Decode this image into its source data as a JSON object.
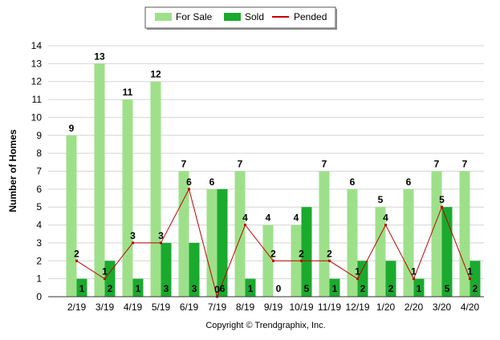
{
  "chart_data": {
    "type": "bar",
    "categories": [
      "2/19",
      "3/19",
      "4/19",
      "5/19",
      "6/19",
      "7/19",
      "8/19",
      "9/19",
      "10/19",
      "11/19",
      "12/19",
      "1/20",
      "2/20",
      "3/20",
      "4/20"
    ],
    "series": [
      {
        "name": "For Sale",
        "type": "bar",
        "values": [
          9,
          13,
          11,
          12,
          7,
          6,
          7,
          4,
          4,
          7,
          6,
          5,
          6,
          7,
          7
        ],
        "color": "#9ee08a"
      },
      {
        "name": "Sold",
        "type": "bar",
        "values": [
          1,
          2,
          1,
          3,
          3,
          6,
          1,
          0,
          5,
          1,
          2,
          2,
          1,
          5,
          2
        ],
        "color": "#1aaa2e"
      },
      {
        "name": "Pended",
        "type": "line",
        "values": [
          2,
          1,
          3,
          3,
          6,
          0,
          4,
          2,
          2,
          2,
          1,
          4,
          1,
          5,
          1
        ],
        "color": "#c00000"
      }
    ],
    "ylabel": "Number of Homes",
    "ylim": [
      0,
      14
    ],
    "yticks": [
      0,
      1,
      2,
      3,
      4,
      5,
      6,
      7,
      8,
      9,
      10,
      11,
      12,
      13,
      14
    ],
    "grid": true,
    "legend_position": "top-center",
    "footer": "Copyright © Trendgraphix, Inc."
  }
}
